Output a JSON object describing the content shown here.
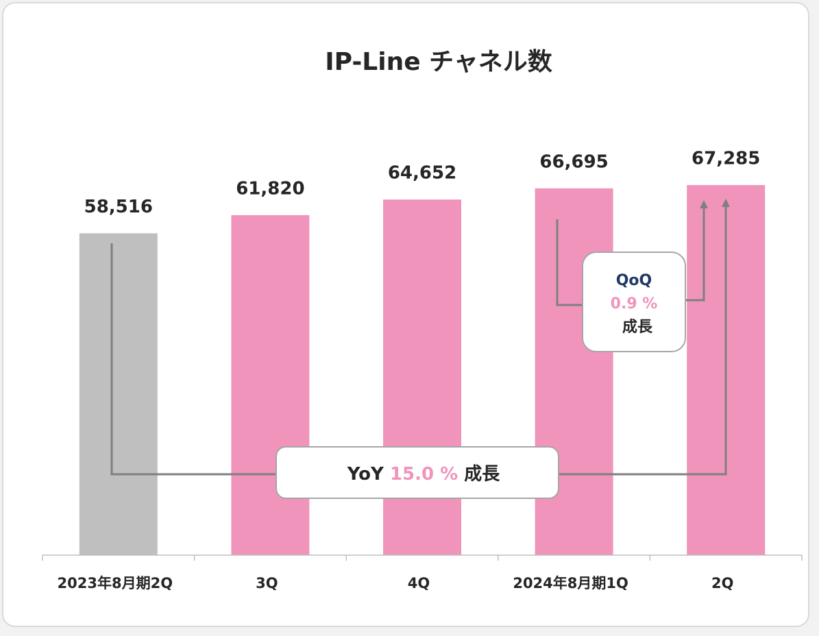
{
  "chart_data": {
    "type": "bar",
    "title": "IP-Line チャネル数",
    "categories": [
      "2023年8月期2Q",
      "3Q",
      "4Q",
      "2024年8月期1Q",
      "2Q"
    ],
    "values": [
      58516,
      61820,
      64652,
      66695,
      67285
    ],
    "value_labels": [
      "58,516",
      "61,820",
      "64,652",
      "66,695",
      "67,285"
    ],
    "colors": [
      "#bfbfbf",
      "#f094bc",
      "#f094bc",
      "#f094bc",
      "#f094bc"
    ],
    "ylim": [
      0,
      80000
    ],
    "annotations": {
      "yoy": [
        "YoY",
        "15.0 %",
        "成長"
      ],
      "qoq": [
        "QoQ",
        "0.9 %",
        "成長"
      ]
    }
  }
}
